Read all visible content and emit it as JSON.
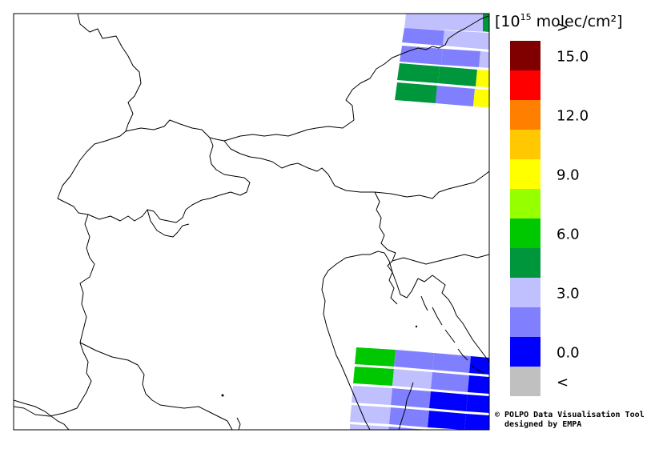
{
  "legend": {
    "unit_prefix": "[",
    "unit_base": "10",
    "unit_exp": "15",
    "unit_rest": " molec/cm²]",
    "bins": [
      {
        "color": "#c0c0c0",
        "label": "<"
      },
      {
        "color": "#0000ff",
        "label": "0.0"
      },
      {
        "color": "#8080ff",
        "label": ""
      },
      {
        "color": "#c0c0ff",
        "label": "3.0"
      },
      {
        "color": "#00963c",
        "label": ""
      },
      {
        "color": "#00c800",
        "label": "6.0"
      },
      {
        "color": "#96ff00",
        "label": ""
      },
      {
        "color": "#ffff00",
        "label": "9.0"
      },
      {
        "color": "#ffc800",
        "label": ""
      },
      {
        "color": "#ff8000",
        "label": "12.0"
      },
      {
        "color": "#ff0000",
        "label": ""
      },
      {
        "color": "#800000",
        "label": "15.0"
      },
      {
        "color": "",
        "label": ">"
      }
    ]
  },
  "credit": {
    "line1": "© POLPO Data Visualisation Tool",
    "line2": "designed by EMPA"
  },
  "swaths": [
    {
      "bin": 3
    },
    {
      "bin": 4
    },
    {
      "bin": 2
    },
    {
      "bin": 3
    },
    {
      "bin": 2
    },
    {
      "bin": 2
    },
    {
      "bin": 3
    },
    {
      "bin": 4
    },
    {
      "bin": 4
    },
    {
      "bin": 7
    },
    {
      "bin": 4
    },
    {
      "bin": 2
    },
    {
      "bin": 7
    },
    {
      "bin": 5
    },
    {
      "bin": 2
    },
    {
      "bin": 2
    },
    {
      "bin": 1
    },
    {
      "bin": 5
    },
    {
      "bin": 3
    },
    {
      "bin": 2
    },
    {
      "bin": 1
    },
    {
      "bin": 3
    },
    {
      "bin": 2
    },
    {
      "bin": 1
    },
    {
      "bin": 1
    },
    {
      "bin": 3
    },
    {
      "bin": 2
    },
    {
      "bin": 1
    },
    {
      "bin": 1
    },
    {
      "bin": 3
    },
    {
      "bin": 2
    },
    {
      "bin": 2
    },
    {
      "bin": 1
    }
  ]
}
